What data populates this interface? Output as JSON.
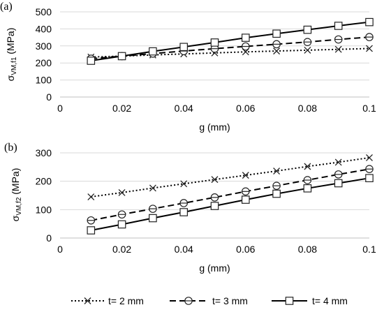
{
  "chart_data": [
    {
      "type": "line",
      "panel_label": "(a)",
      "xlabel": "g (mm)",
      "ylabel_main": "σ",
      "ylabel_sub": "VM,f1",
      "ylabel_unit": " (MPa)",
      "xlim": [
        0,
        0.1
      ],
      "ylim": [
        0,
        500
      ],
      "xticks": [
        "0",
        "0.02",
        "0.04",
        "0.06",
        "0.08",
        "0.1"
      ],
      "yticks": [
        "0",
        "100",
        "200",
        "300",
        "400",
        "500"
      ],
      "x": [
        0.01,
        0.02,
        0.03,
        0.04,
        0.05,
        0.06,
        0.07,
        0.08,
        0.09,
        0.1
      ],
      "series": [
        {
          "name": "t= 2 mm",
          "values": [
            235,
            240,
            247,
            253,
            259,
            265,
            270,
            275,
            280,
            285
          ]
        },
        {
          "name": "t= 3 mm",
          "values": [
            225,
            240,
            255,
            270,
            284,
            297,
            310,
            323,
            338,
            352
          ]
        },
        {
          "name": "t= 4 mm",
          "values": [
            213,
            240,
            268,
            294,
            320,
            348,
            372,
            395,
            418,
            440
          ]
        }
      ]
    },
    {
      "type": "line",
      "panel_label": "(b)",
      "xlabel": "g (mm)",
      "ylabel_main": "σ",
      "ylabel_sub": "VM,f2",
      "ylabel_unit": " (MPa)",
      "xlim": [
        0,
        0.1
      ],
      "ylim": [
        0,
        300
      ],
      "xticks": [
        "0",
        "0.02",
        "0.04",
        "0.06",
        "0.08",
        "0.1"
      ],
      "yticks": [
        "0",
        "100",
        "200",
        "300"
      ],
      "x": [
        0.01,
        0.02,
        0.03,
        0.04,
        0.05,
        0.06,
        0.07,
        0.08,
        0.09,
        0.1
      ],
      "series": [
        {
          "name": "t= 2 mm",
          "values": [
            145,
            160,
            176,
            191,
            206,
            221,
            236,
            252,
            267,
            283
          ]
        },
        {
          "name": "t= 3 mm",
          "values": [
            62,
            83,
            103,
            123,
            143,
            164,
            184,
            204,
            224,
            243
          ]
        },
        {
          "name": "t= 4 mm",
          "values": [
            27,
            48,
            70,
            91,
            113,
            135,
            156,
            175,
            193,
            211
          ]
        }
      ]
    }
  ],
  "legend": {
    "position": "bottom",
    "entries": [
      {
        "label": "t= 2 mm",
        "line": "dotted",
        "marker": "x"
      },
      {
        "label": "t= 3 mm",
        "line": "dashed",
        "marker": "circle-bar"
      },
      {
        "label": "t= 4 mm",
        "line": "solid",
        "marker": "square"
      }
    ]
  }
}
